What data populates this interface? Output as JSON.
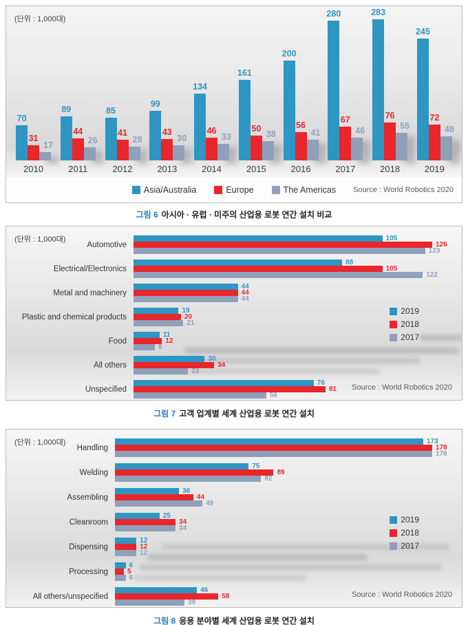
{
  "page": {
    "captions": [
      {
        "prefix": "그림 6",
        "title": "아시아 · 유럽 · 미주의 산업용 로봇 연간 설치 비교"
      },
      {
        "prefix": "그림 7",
        "title": "고객 업계별 세계 산업용 로봇 연간 설치"
      },
      {
        "prefix": "그림 8",
        "title": "응용 분야별 세계 산업용 로봇 연간 설치"
      }
    ],
    "caption_accent_color": "#2878be"
  },
  "chart_data": [
    {
      "type": "bar",
      "orientation": "vertical",
      "unit_label": "(단위 : 1,000대)",
      "source": "Source : World Robotics 2020",
      "categories": [
        "2010",
        "2011",
        "2012",
        "2013",
        "2014",
        "2015",
        "2016",
        "2017",
        "2018",
        "2019"
      ],
      "series": [
        {
          "name": "Asia/Australia",
          "color": "#2e96c2",
          "values": [
            70,
            89,
            85,
            99,
            134,
            161,
            200,
            280,
            283,
            245
          ]
        },
        {
          "name": "Europe",
          "color": "#e8262b",
          "values": [
            31,
            44,
            41,
            43,
            46,
            50,
            56,
            67,
            76,
            72
          ]
        },
        {
          "name": "The Americas",
          "color": "#8fa0ba",
          "values": [
            17,
            26,
            28,
            30,
            33,
            38,
            41,
            46,
            55,
            48
          ]
        }
      ],
      "ylim": [
        0,
        290
      ],
      "grid": false,
      "legend_position": "bottom"
    },
    {
      "type": "bar",
      "orientation": "horizontal",
      "unit_label": "(단위 : 1,000대)",
      "source": "Source : World Robotics 2020",
      "categories": [
        "Automotive",
        "Electrical/Electronics",
        "Metal and machinery",
        "Plastic and chemical products",
        "Food",
        "All others",
        "Unspecified"
      ],
      "series": [
        {
          "name": "2019",
          "color": "#2e96c2",
          "values": [
            105,
            88,
            44,
            19,
            11,
            30,
            76
          ]
        },
        {
          "name": "2018",
          "color": "#e8262b",
          "values": [
            126,
            105,
            44,
            20,
            12,
            34,
            81
          ]
        },
        {
          "name": "2017",
          "color": "#8fa0ba",
          "values": [
            123,
            122,
            44,
            21,
            9,
            23,
            56
          ]
        }
      ],
      "xlim": [
        0,
        135
      ],
      "grid": false,
      "legend_position": "right"
    },
    {
      "type": "bar",
      "orientation": "horizontal",
      "unit_label": "(단위 : 1,000대)",
      "source": "Source : World Robotics 2020",
      "categories": [
        "Handling",
        "Welding",
        "Assembling",
        "Cleanroom",
        "Dispensing",
        "Processing",
        "All others/unspecified"
      ],
      "series": [
        {
          "name": "2019",
          "color": "#2e96c2",
          "values": [
            173,
            75,
            36,
            25,
            12,
            6,
            46
          ]
        },
        {
          "name": "2018",
          "color": "#e8262b",
          "values": [
            178,
            89,
            44,
            34,
            12,
            5,
            58
          ]
        },
        {
          "name": "2017",
          "color": "#8fa0ba",
          "values": [
            178,
            82,
            49,
            34,
            12,
            6,
            39
          ]
        }
      ],
      "xlim": [
        0,
        190
      ],
      "grid": false,
      "legend_position": "right"
    }
  ]
}
